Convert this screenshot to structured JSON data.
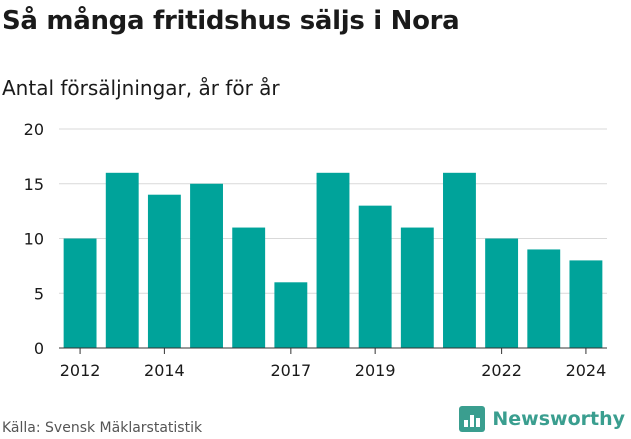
{
  "title": "Så många fritidshus säljs i Nora",
  "subtitle": "Antal försäljningar, år för år",
  "source": "Källa: Svensk Mäklarstatistik",
  "brand": {
    "name": "Newsworthy",
    "icon": "bar-chart-logo-icon"
  },
  "colors": {
    "bar": "#00a39a",
    "grid": "#d9d9d9",
    "brand": "#3a9e8f"
  },
  "chart_data": {
    "type": "bar",
    "categories": [
      "2012",
      "2013",
      "2014",
      "2015",
      "2016",
      "2017",
      "2018",
      "2019",
      "2020",
      "2021",
      "2022",
      "2023",
      "2024"
    ],
    "values": [
      10,
      16,
      14,
      15,
      11,
      6,
      16,
      13,
      11,
      16,
      10,
      9,
      8
    ],
    "x_tick_labels": [
      "2012",
      "2014",
      "2017",
      "2019",
      "2022",
      "2024"
    ],
    "y_ticks": [
      0,
      5,
      10,
      15,
      20
    ],
    "ylim": [
      0,
      20
    ],
    "grid": true,
    "xlabel": "",
    "ylabel": ""
  }
}
